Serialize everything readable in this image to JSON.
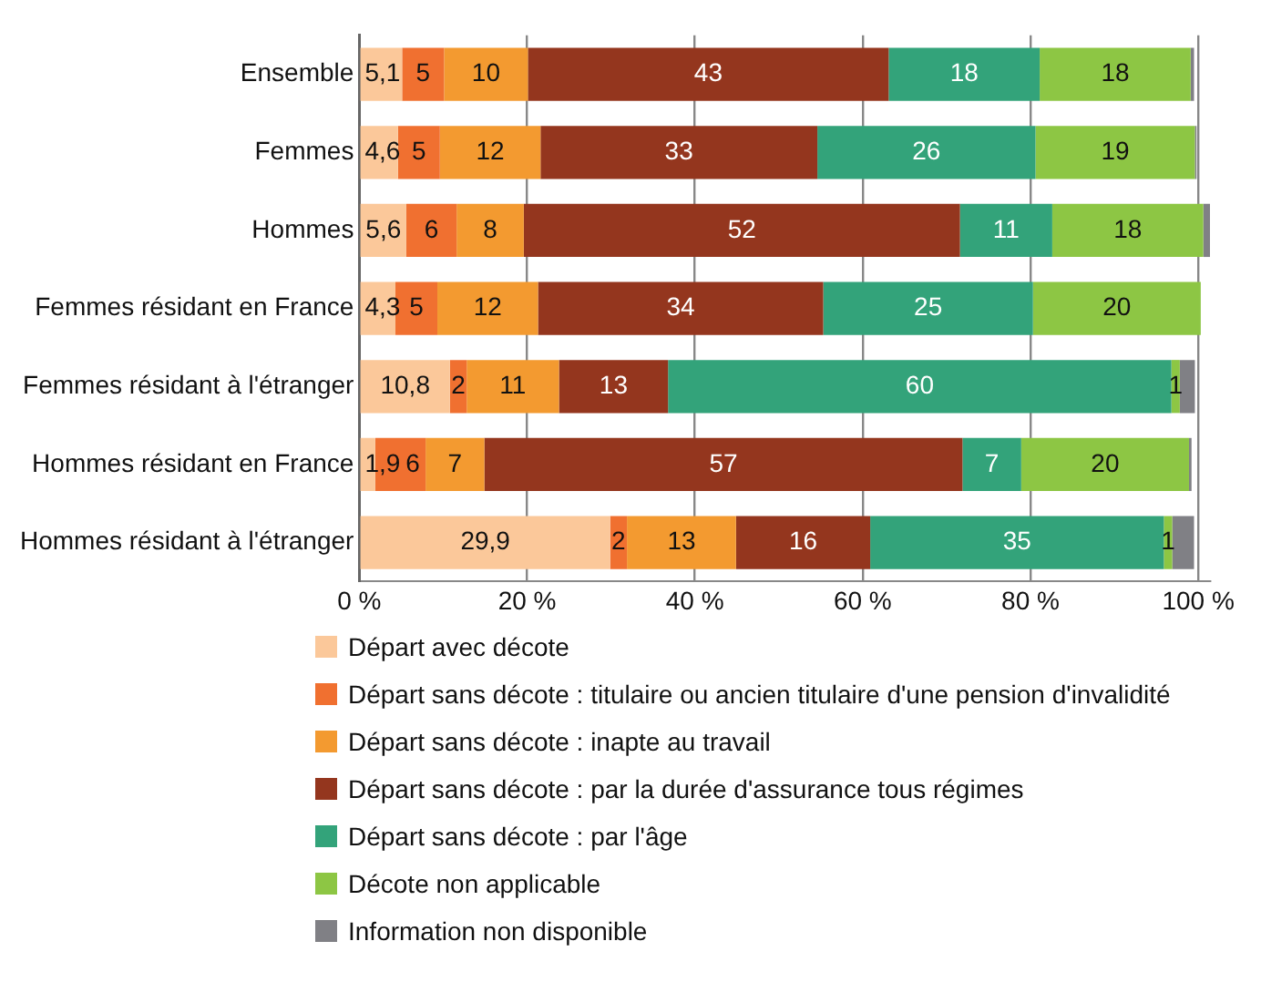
{
  "chart_data": {
    "type": "bar",
    "orientation": "horizontal",
    "stacked": true,
    "categories": [
      "Ensemble",
      "Femmes",
      "Hommes",
      "Femmes résidant en France",
      "Femmes résidant à l'étranger",
      "Hommes résidant en France",
      "Hommes résidant à l'étranger"
    ],
    "series": [
      {
        "name": "Départ avec décote",
        "color": "#fbc89a",
        "values": [
          5.1,
          4.6,
          5.6,
          4.3,
          10.8,
          1.9,
          29.9
        ],
        "value_labels": [
          "5,1",
          "4,6",
          "5,6",
          "4,3",
          "10,8",
          "1,9",
          "29,9"
        ]
      },
      {
        "name": "Départ sans décote : titulaire ou ancien titulaire d'une pension d'invalidité",
        "color": "#f07030",
        "values": [
          5,
          5,
          6,
          5,
          2,
          6,
          2
        ],
        "value_labels": [
          "5",
          "5",
          "6",
          "5",
          "2",
          "6",
          "2"
        ]
      },
      {
        "name": "Départ sans décote : inapte au travail",
        "color": "#f39a30",
        "values": [
          10,
          12,
          8,
          12,
          11,
          7,
          13
        ],
        "value_labels": [
          "10",
          "12",
          "8",
          "12",
          "11",
          "7",
          "13"
        ]
      },
      {
        "name": "Départ sans décote : par la durée d'assurance tous régimes",
        "color": "#94361e",
        "values": [
          43,
          33,
          52,
          34,
          13,
          57,
          16
        ],
        "value_labels": [
          "43",
          "33",
          "52",
          "34",
          "13",
          "57",
          "16"
        ]
      },
      {
        "name": "Départ sans décote : par l'âge",
        "color": "#33a37a",
        "values": [
          18,
          26,
          11,
          25,
          60,
          7,
          35
        ],
        "value_labels": [
          "18",
          "26",
          "11",
          "25",
          "60",
          "7",
          "35"
        ]
      },
      {
        "name": "Décote non applicable",
        "color": "#8dc644",
        "values": [
          18,
          19,
          18,
          20,
          1,
          20,
          1
        ],
        "value_labels": [
          "18",
          "19",
          "18",
          "20",
          "1",
          "20",
          "1"
        ]
      },
      {
        "name": "Information non disponible",
        "color": "#808085",
        "values": [
          0.4,
          0.2,
          0.8,
          null,
          1.8,
          0.3,
          2.6
        ]
      }
    ],
    "xlim": [
      0,
      101.4
    ],
    "xticks": [
      {
        "value": 0,
        "label": "0 %"
      },
      {
        "value": 20,
        "label": "20 %"
      },
      {
        "value": 40,
        "label": "40 %"
      },
      {
        "value": 60,
        "label": "60 %"
      },
      {
        "value": 80,
        "label": "80 %"
      },
      {
        "value": 100,
        "label": "100 %"
      }
    ],
    "grid": "x",
    "legend": "bottom"
  }
}
